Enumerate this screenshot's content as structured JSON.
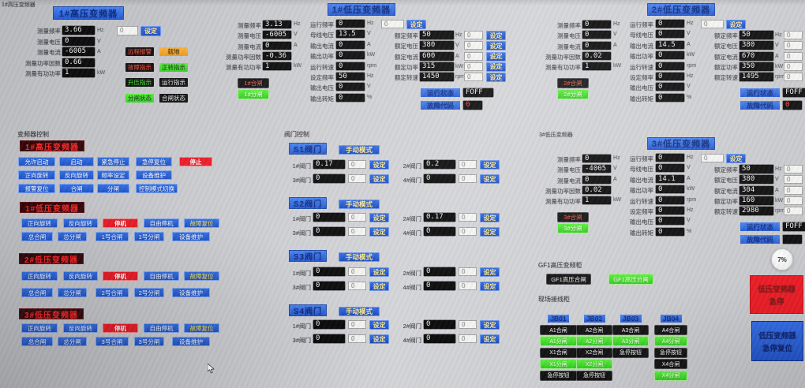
{
  "colors": {
    "accent_blue": "#1c50c4",
    "alarm_red": "#ea1722",
    "ok_green": "#3ede2e",
    "warn_orange": "#f2a01e"
  },
  "hv1": {
    "corner_label": "1#高压变频器",
    "title": "1#高压变频器",
    "fields": [
      {
        "label": "测量频率",
        "value": "3.66",
        "unit": "Hz"
      },
      {
        "label": "测量电压",
        "value": "0",
        "unit": "V"
      },
      {
        "label": "测量电流",
        "value": "-6005",
        "unit": "A"
      },
      {
        "label": "测量功率因数",
        "value": "0.66",
        "unit": ""
      },
      {
        "label": "测量有功功率",
        "value": "1",
        "unit": "kW"
      }
    ],
    "set_input": "0",
    "set_label": "设定",
    "indicators": [
      {
        "label": "远程报警",
        "style": "dark-red"
      },
      {
        "label": "就地",
        "style": "orange"
      },
      {
        "label": "故障指示",
        "style": "dark-red"
      },
      {
        "label": "正转指示",
        "style": "green"
      },
      {
        "label": "升压指示",
        "style": "dark-green"
      },
      {
        "label": "运行指示",
        "style": "dark"
      },
      {
        "label": "分闸状态",
        "style": "green"
      },
      {
        "label": "合闸状态",
        "style": "dark"
      }
    ]
  },
  "lv_panels": [
    {
      "title": "1#低压变频器",
      "small_label": "",
      "measure": [
        {
          "label": "测量频率",
          "value": "3.13",
          "unit": "Hz"
        },
        {
          "label": "测量电压",
          "value": "-6005",
          "unit": "V"
        },
        {
          "label": "测量电流",
          "value": "0",
          "unit": "A"
        },
        {
          "label": "测量功率因数",
          "value": "-0.36",
          "unit": ""
        },
        {
          "label": "测量有功功率",
          "value": "1",
          "unit": "kW"
        }
      ],
      "close_label": "1#合闸",
      "open_label": "1#分闸",
      "run": [
        {
          "label": "运行频率",
          "value": "0",
          "unit": "Hz"
        },
        {
          "label": "母线电压",
          "value": "13.5",
          "unit": "V"
        },
        {
          "label": "输出电流",
          "value": "0",
          "unit": "A"
        },
        {
          "label": "输出功率",
          "value": "0",
          "unit": "kW"
        },
        {
          "label": "运行转速",
          "value": "0",
          "unit": "rpm"
        },
        {
          "label": "设定频率",
          "value": "50",
          "unit": "Hz"
        },
        {
          "label": "输出电压",
          "value": "0",
          "unit": "V"
        },
        {
          "label": "输出转矩",
          "value": "0",
          "unit": "%"
        }
      ],
      "set_input": "0",
      "set_label": "设定",
      "rated": [
        {
          "label": "额定频率",
          "value": "50",
          "unit": "Hz",
          "input": "0"
        },
        {
          "label": "额定电压",
          "value": "380",
          "unit": "V",
          "input": "0"
        },
        {
          "label": "额定电流",
          "value": "600",
          "unit": "A",
          "input": "0"
        },
        {
          "label": "额定功率",
          "value": "315",
          "unit": "kW",
          "input": "0"
        },
        {
          "label": "额定转速",
          "value": "1450",
          "unit": "rpm",
          "input": "0"
        }
      ],
      "status_label": "运行状态",
      "status_value": "FOFF",
      "fault_label": "故障代码",
      "fault_value": "0"
    },
    {
      "title": "2#低压变频器",
      "small_label": "",
      "measure": [
        {
          "label": "测量频率",
          "value": "0",
          "unit": "Hz"
        },
        {
          "label": "测量电压",
          "value": "0",
          "unit": "V"
        },
        {
          "label": "测量电流",
          "value": "0",
          "unit": "A"
        },
        {
          "label": "测量功率因数",
          "value": "0.02",
          "unit": ""
        },
        {
          "label": "测量有功功率",
          "value": "1",
          "unit": "kW"
        }
      ],
      "close_label": "2#合闸",
      "open_label": "2#分闸",
      "run": [
        {
          "label": "运行频率",
          "value": "0",
          "unit": "Hz"
        },
        {
          "label": "母线电压",
          "value": "0",
          "unit": "V"
        },
        {
          "label": "输出电流",
          "value": "14.5",
          "unit": "A"
        },
        {
          "label": "输出功率",
          "value": "0",
          "unit": "kW"
        },
        {
          "label": "运行转速",
          "value": "0",
          "unit": "rpm"
        },
        {
          "label": "设定频率",
          "value": "0",
          "unit": "Hz"
        },
        {
          "label": "输出电压",
          "value": "0",
          "unit": "V"
        },
        {
          "label": "输出转矩",
          "value": "0",
          "unit": "%"
        }
      ],
      "set_input": "0",
      "set_label": "设定",
      "rated": [
        {
          "label": "额定频率",
          "value": "50",
          "unit": "Hz",
          "input": "0"
        },
        {
          "label": "额定电压",
          "value": "380",
          "unit": "V",
          "input": "0"
        },
        {
          "label": "额定电流",
          "value": "670",
          "unit": "A",
          "input": "0"
        },
        {
          "label": "额定功率",
          "value": "350",
          "unit": "kW",
          "input": "0"
        },
        {
          "label": "额定转速",
          "value": "1495",
          "unit": "rpm",
          "input": "0"
        }
      ],
      "status_label": "运行状态",
      "status_value": "FOFF",
      "fault_label": "故障代码",
      "fault_value": "0"
    },
    {
      "title": "3#低压变频器",
      "small_label": "3#低压变频器",
      "measure": [
        {
          "label": "测量频率",
          "value": "0",
          "unit": "Hz"
        },
        {
          "label": "测量电压",
          "value": "-4005",
          "unit": "V"
        },
        {
          "label": "测量电流",
          "value": "0",
          "unit": "A"
        },
        {
          "label": "测量功率因数",
          "value": "0.02",
          "unit": ""
        },
        {
          "label": "测量有功功率",
          "value": "1",
          "unit": "kW"
        }
      ],
      "close_label": "3#合闸",
      "open_label": "3#分闸",
      "run": [
        {
          "label": "运行频率",
          "value": "0",
          "unit": "Hz"
        },
        {
          "label": "母线电压",
          "value": "0",
          "unit": "V"
        },
        {
          "label": "输出电流",
          "value": "14.1",
          "unit": "A"
        },
        {
          "label": "输出功率",
          "value": "0",
          "unit": "kW"
        },
        {
          "label": "运行转速",
          "value": "0",
          "unit": "rpm"
        },
        {
          "label": "设定频率",
          "value": "0",
          "unit": "Hz"
        },
        {
          "label": "输出电压",
          "value": "0",
          "unit": "V"
        },
        {
          "label": "输出转矩",
          "value": "0",
          "unit": "%"
        }
      ],
      "set_input": "0",
      "set_label": "设定",
      "rated": [
        {
          "label": "额定频率",
          "value": "50",
          "unit": "Hz",
          "input": "0"
        },
        {
          "label": "额定电压",
          "value": "380",
          "unit": "V",
          "input": "0"
        },
        {
          "label": "额定电流",
          "value": "304",
          "unit": "A",
          "input": "0"
        },
        {
          "label": "额定功率",
          "value": "160",
          "unit": "kW",
          "input": "0"
        },
        {
          "label": "额定转速",
          "value": "2980",
          "unit": "rpm",
          "input": "0"
        }
      ],
      "status_label": "运行状态",
      "status_value": "FOFF",
      "fault_label": "故障代码",
      "fault_value": ""
    }
  ],
  "vfd_control": {
    "section_label": "变频器控制",
    "groups": [
      {
        "title": "1#高压变频器",
        "rows": [
          [
            {
              "label": "允许启动",
              "style": "blue"
            },
            {
              "label": "启动",
              "style": "blue"
            },
            {
              "label": "紧急停止",
              "style": "blue"
            },
            {
              "label": "急停复位",
              "style": "blue"
            },
            {
              "label": "停止",
              "style": "red"
            }
          ],
          [
            {
              "label": "正向旋转",
              "style": "blue"
            },
            {
              "label": "反向旋转",
              "style": "blue"
            },
            {
              "label": "频率设定",
              "style": "blue"
            },
            {
              "label": "设备维护",
              "style": "blue"
            }
          ],
          [
            {
              "label": "报警复位",
              "style": "blue"
            },
            {
              "label": "合闸",
              "style": "blue"
            },
            {
              "label": "分闸",
              "style": "blue"
            },
            {
              "label": "控制模式切换",
              "style": "blue"
            }
          ]
        ]
      },
      {
        "title": "1#低压变频器",
        "rows": [
          [
            {
              "label": "正向旋转",
              "style": "blue"
            },
            {
              "label": "反向旋转",
              "style": "blue"
            },
            {
              "label": "停机",
              "style": "red"
            },
            {
              "label": "自由停机",
              "style": "blue"
            },
            {
              "label": "故障复位",
              "style": "blue-yellow"
            }
          ],
          [
            {
              "label": "总合闸",
              "style": "blue"
            },
            {
              "label": "总分闸",
              "style": "blue"
            },
            {
              "label": "1号合闸",
              "style": "blue"
            },
            {
              "label": "1号分闸",
              "style": "blue"
            },
            {
              "label": "设备维护",
              "style": "blue"
            }
          ]
        ]
      },
      {
        "title": "2#低压变频器",
        "rows": [
          [
            {
              "label": "正向旋转",
              "style": "blue"
            },
            {
              "label": "反向旋转",
              "style": "blue"
            },
            {
              "label": "停机",
              "style": "red"
            },
            {
              "label": "自由停机",
              "style": "blue"
            },
            {
              "label": "故障复位",
              "style": "blue-yellow"
            }
          ],
          [
            {
              "label": "总合闸",
              "style": "blue"
            },
            {
              "label": "总分闸",
              "style": "blue"
            },
            {
              "label": "2号合闸",
              "style": "blue"
            },
            {
              "label": "2号分闸",
              "style": "blue"
            },
            {
              "label": "设备维护",
              "style": "blue"
            }
          ]
        ]
      },
      {
        "title": "3#低压变频器",
        "rows": [
          [
            {
              "label": "正向旋转",
              "style": "blue"
            },
            {
              "label": "反向旋转",
              "style": "blue"
            },
            {
              "label": "停机",
              "style": "red"
            },
            {
              "label": "自由停机",
              "style": "blue"
            },
            {
              "label": "故障复位",
              "style": "blue-yellow"
            }
          ],
          [
            {
              "label": "总合闸",
              "style": "blue"
            },
            {
              "label": "总分闸",
              "style": "blue"
            },
            {
              "label": "3号合闸",
              "style": "blue"
            },
            {
              "label": "3号分闸",
              "style": "blue"
            },
            {
              "label": "设备维护",
              "style": "blue"
            }
          ]
        ]
      }
    ]
  },
  "valve_control": {
    "section_label": "阀门控制",
    "manual_label": "手动模式",
    "set_label": "设定",
    "groups": [
      {
        "title": "S1阀门",
        "valves": [
          {
            "label": "1#阀门",
            "value": "0.17",
            "input": "0"
          },
          {
            "label": "2#阀门",
            "value": "0.2",
            "input": "0"
          },
          {
            "label": "3#阀门",
            "value": "0",
            "input": "0"
          },
          {
            "label": "4#阀门",
            "value": "0",
            "input": "0"
          }
        ]
      },
      {
        "title": "S2阀门",
        "valves": [
          {
            "label": "1#阀门",
            "value": "0",
            "input": "0"
          },
          {
            "label": "2#阀门",
            "value": "0.17",
            "input": "0"
          },
          {
            "label": "3#阀门",
            "value": "0",
            "input": "0"
          },
          {
            "label": "4#阀门",
            "value": "0",
            "input": "0"
          }
        ]
      },
      {
        "title": "S3阀门",
        "valves": [
          {
            "label": "1#阀门",
            "value": "0",
            "input": "0"
          },
          {
            "label": "2#阀门",
            "value": "0",
            "input": "0"
          },
          {
            "label": "3#阀门",
            "value": "0",
            "input": "0"
          },
          {
            "label": "4#阀门",
            "value": "0",
            "input": "0"
          }
        ]
      },
      {
        "title": "S4阀门",
        "valves": [
          {
            "label": "1#阀门",
            "value": "0",
            "input": "0"
          },
          {
            "label": "2#阀门",
            "value": "0",
            "input": "0"
          },
          {
            "label": "3#阀门",
            "value": "0",
            "input": "0"
          },
          {
            "label": "4#阀门",
            "value": "0",
            "input": "0"
          }
        ]
      }
    ]
  },
  "gf1": {
    "section_label": "GF1高压变频柜",
    "close_label": "GF1高压合闸",
    "open_label": "GF1高压分闸"
  },
  "junction": {
    "section_label": "现场接线柜",
    "columns": [
      {
        "title": "JB01",
        "buttons": [
          {
            "label": "A1合闸",
            "style": "dark"
          },
          {
            "label": "A1分闸",
            "style": "green"
          },
          {
            "label": "X1合闸",
            "style": "dark"
          },
          {
            "label": "X1分闸",
            "style": "green"
          },
          {
            "label": "急停按钮",
            "style": "dark"
          }
        ]
      },
      {
        "title": "JB02",
        "buttons": [
          {
            "label": "A2合闸",
            "style": "dark"
          },
          {
            "label": "A2分闸",
            "style": "green"
          },
          {
            "label": "X2合闸",
            "style": "dark"
          },
          {
            "label": "X2分闸",
            "style": "green"
          },
          {
            "label": "急停按钮",
            "style": "dark"
          }
        ]
      },
      {
        "title": "JB03",
        "buttons": [
          {
            "label": "A3合闸",
            "style": "dark"
          },
          {
            "label": "A3分闸",
            "style": "green"
          },
          {
            "label": "急停按钮",
            "style": "dark"
          }
        ]
      },
      {
        "title": "JB04",
        "buttons": [
          {
            "label": "A4合闸",
            "style": "dark"
          },
          {
            "label": "A4分闸",
            "style": "green"
          },
          {
            "label": "急停按钮",
            "style": "dark"
          },
          {
            "label": "X4合闸",
            "style": "dark"
          },
          {
            "label": "X4分闸",
            "style": "green"
          }
        ]
      }
    ]
  },
  "estop": {
    "stop": {
      "line1": "低压变频器",
      "line2": "急停"
    },
    "reset": {
      "line1": "低压变频器",
      "line2": "急停复位"
    }
  },
  "overlay": {
    "badge": "7%"
  }
}
